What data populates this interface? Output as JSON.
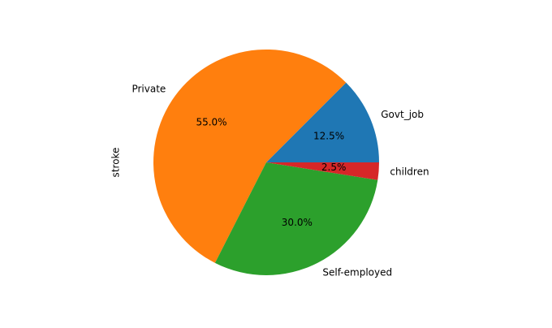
{
  "chart_data": {
    "type": "pie",
    "ylabel": "stroke",
    "categories": [
      "Govt_job",
      "Private",
      "Self-employed",
      "children"
    ],
    "values": [
      12.5,
      55.0,
      30.0,
      2.5
    ],
    "value_labels": [
      "12.5%",
      "55.0%",
      "30.0%",
      "2.5%"
    ],
    "colors": [
      "#1f77b4",
      "#ff7f0e",
      "#2ca02c",
      "#d62728"
    ],
    "startangle": 0,
    "counterclock": true
  }
}
